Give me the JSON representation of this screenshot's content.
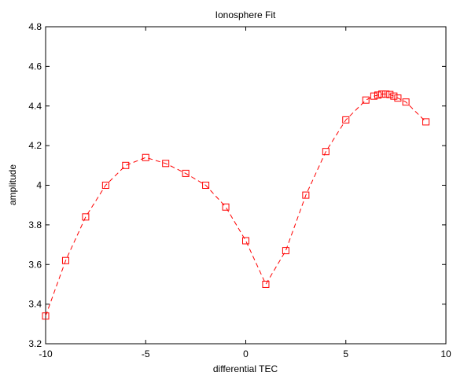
{
  "chart_data": {
    "type": "line",
    "title": "Ionosphere Fit",
    "xlabel": "differential TEC",
    "ylabel": "amplitude",
    "xlim": [
      -10,
      10
    ],
    "ylim": [
      3.2,
      4.8
    ],
    "xticks": [
      -10,
      -5,
      0,
      5,
      10
    ],
    "yticks": [
      3.2,
      3.4,
      3.6,
      3.8,
      4,
      4.2,
      4.4,
      4.6,
      4.8
    ],
    "xtick_labels": [
      "-10",
      "-5",
      "0",
      "5",
      "10"
    ],
    "ytick_labels": [
      "3.2",
      "3.4",
      "3.6",
      "3.8",
      "4",
      "4.2",
      "4.4",
      "4.6",
      "4.8"
    ],
    "grid": false,
    "line_style": "dashed",
    "marker": "square",
    "color": "#ff0000",
    "series": [
      {
        "x": [
          -10,
          -9,
          -8,
          -7,
          -6,
          -5,
          -4,
          -3,
          -2,
          -1,
          0,
          1,
          2,
          3,
          4,
          5,
          6,
          6.4,
          6.6,
          6.8,
          7,
          7.2,
          7.4,
          7.6,
          8,
          9
        ],
        "y": [
          3.34,
          3.62,
          3.84,
          4.0,
          4.1,
          4.14,
          4.11,
          4.06,
          4.0,
          3.89,
          3.72,
          3.5,
          3.67,
          3.95,
          4.17,
          4.33,
          4.43,
          4.45,
          4.455,
          4.46,
          4.46,
          4.458,
          4.45,
          4.44,
          4.42,
          4.32
        ]
      }
    ]
  }
}
